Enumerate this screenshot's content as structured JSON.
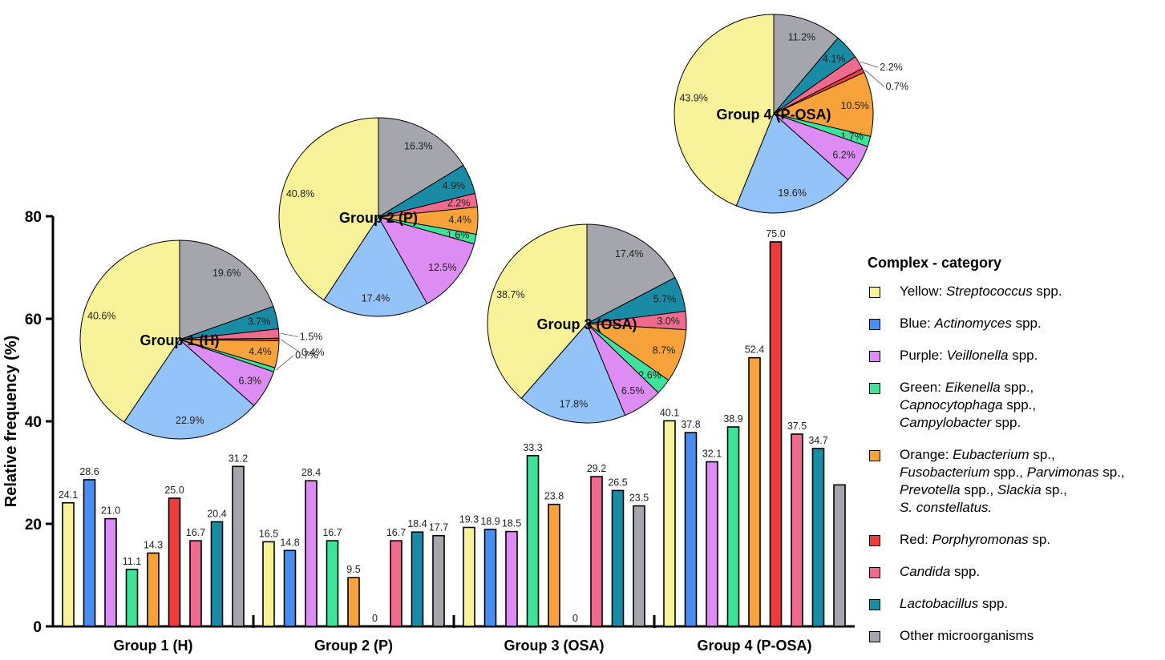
{
  "colors": {
    "yellow": "#f8f39b",
    "blue": "#4a8df0",
    "purple": "#dc8cf2",
    "green": "#3ee39a",
    "orange": "#f8a23b",
    "red": "#ee3b3b",
    "pink": "#ef6a8c",
    "teal": "#1a8ba5",
    "gray": "#a5a5ad",
    "light_blue": "#94c3f9"
  },
  "chart_data": [
    {
      "type": "bar",
      "ylabel": "Relative frequency (%)",
      "xlabel": "",
      "ylim": [
        0,
        80
      ],
      "yticks": [
        "0",
        "20",
        "40",
        "60",
        "80"
      ],
      "categories": [
        "Group 1 (H)",
        "Group 2 (P)",
        "Group 3 (OSA)",
        "Group 4 (P-OSA)"
      ],
      "series": [
        {
          "name": "Yellow",
          "color_key": "yellow",
          "values": [
            24.1,
            16.5,
            19.3,
            40.1
          ],
          "labels": [
            "24.1",
            "16.5",
            "19.3",
            "40.1"
          ]
        },
        {
          "name": "Blue",
          "color_key": "blue",
          "values": [
            28.6,
            14.8,
            18.9,
            37.8
          ],
          "labels": [
            "28.6",
            "14.8",
            "18.9",
            "37.8"
          ]
        },
        {
          "name": "Purple",
          "color_key": "purple",
          "values": [
            21.0,
            28.4,
            18.5,
            32.1
          ],
          "labels": [
            "21.0",
            "28.4",
            "18.5",
            "32.1"
          ]
        },
        {
          "name": "Green",
          "color_key": "green",
          "values": [
            11.1,
            16.7,
            33.3,
            38.9
          ],
          "labels": [
            "11.1",
            "16.7",
            "33.3",
            "38.9"
          ]
        },
        {
          "name": "Orange",
          "color_key": "orange",
          "values": [
            14.3,
            9.5,
            23.8,
            52.4
          ],
          "labels": [
            "14.3",
            "9.5",
            "23.8",
            "52.4"
          ]
        },
        {
          "name": "Red",
          "color_key": "red",
          "values": [
            25.0,
            0,
            0,
            75.0
          ],
          "labels": [
            "25.0",
            "0",
            "0",
            "75.0"
          ]
        },
        {
          "name": "Candida",
          "color_key": "pink",
          "values": [
            16.7,
            16.7,
            29.2,
            37.5
          ],
          "labels": [
            "16.7",
            "16.7",
            "29.2",
            "37.5"
          ]
        },
        {
          "name": "Lactobacillus",
          "color_key": "teal",
          "values": [
            20.4,
            18.4,
            26.5,
            34.7
          ],
          "labels": [
            "20.4",
            "18.4",
            "26.5",
            "34.7"
          ]
        },
        {
          "name": "Other",
          "color_key": "gray",
          "values": [
            31.2,
            17.7,
            23.5,
            27.6
          ],
          "labels": [
            "31.2",
            "17.7",
            "23.5",
            ""
          ]
        }
      ]
    },
    {
      "type": "pie",
      "title": "Group 1 (H)",
      "slices": [
        {
          "name": "Other",
          "color_key": "gray",
          "value": 19.6,
          "label": "19.6%"
        },
        {
          "name": "Lactobacillus",
          "color_key": "teal",
          "value": 3.7,
          "label": "3.7%"
        },
        {
          "name": "Candida",
          "color_key": "pink",
          "value": 1.5,
          "label": "1.5%"
        },
        {
          "name": "Red",
          "color_key": "red",
          "value": 0.4,
          "label": "0.4%"
        },
        {
          "name": "Orange",
          "color_key": "orange",
          "value": 4.4,
          "label": "4.4%"
        },
        {
          "name": "Green",
          "color_key": "green",
          "value": 0.7,
          "label": "0.7%"
        },
        {
          "name": "Purple",
          "color_key": "purple",
          "value": 6.3,
          "label": "6.3%"
        },
        {
          "name": "Blue",
          "color_key": "light_blue",
          "value": 22.9,
          "label": "22.9%"
        },
        {
          "name": "Yellow",
          "color_key": "yellow",
          "value": 40.6,
          "label": "40.6%"
        }
      ]
    },
    {
      "type": "pie",
      "title": "Group 2 (P)",
      "slices": [
        {
          "name": "Other",
          "color_key": "gray",
          "value": 16.3,
          "label": "16.3%"
        },
        {
          "name": "Lactobacillus",
          "color_key": "teal",
          "value": 4.9,
          "label": "4.9%"
        },
        {
          "name": "Candida",
          "color_key": "pink",
          "value": 2.2,
          "label": "2.2%"
        },
        {
          "name": "Orange",
          "color_key": "orange",
          "value": 4.4,
          "label": "4.4%"
        },
        {
          "name": "Green",
          "color_key": "green",
          "value": 1.6,
          "label": "1.6%"
        },
        {
          "name": "Purple",
          "color_key": "purple",
          "value": 12.5,
          "label": "12.5%"
        },
        {
          "name": "Blue",
          "color_key": "light_blue",
          "value": 17.4,
          "label": "17.4%"
        },
        {
          "name": "Yellow",
          "color_key": "yellow",
          "value": 40.8,
          "label": "40.8%"
        }
      ]
    },
    {
      "type": "pie",
      "title": "Group 3 (OSA)",
      "slices": [
        {
          "name": "Other",
          "color_key": "gray",
          "value": 17.4,
          "label": "17.4%"
        },
        {
          "name": "Lactobacillus",
          "color_key": "teal",
          "value": 5.7,
          "label": "5.7%"
        },
        {
          "name": "Candida",
          "color_key": "pink",
          "value": 3.0,
          "label": "3.0%"
        },
        {
          "name": "Orange",
          "color_key": "orange",
          "value": 8.7,
          "label": "8.7%"
        },
        {
          "name": "Green",
          "color_key": "green",
          "value": 2.6,
          "label": "2.6%"
        },
        {
          "name": "Purple",
          "color_key": "purple",
          "value": 6.5,
          "label": "6.5%"
        },
        {
          "name": "Blue",
          "color_key": "light_blue",
          "value": 17.8,
          "label": "17.8%"
        },
        {
          "name": "Yellow",
          "color_key": "yellow",
          "value": 38.7,
          "label": "38.7%"
        }
      ]
    },
    {
      "type": "pie",
      "title": "Group 4 (P-OSA)",
      "slices": [
        {
          "name": "Other",
          "color_key": "gray",
          "value": 11.2,
          "label": "11.2%"
        },
        {
          "name": "Lactobacillus",
          "color_key": "teal",
          "value": 4.1,
          "label": "4.1%"
        },
        {
          "name": "Candida",
          "color_key": "pink",
          "value": 2.2,
          "label": "2.2%"
        },
        {
          "name": "Red",
          "color_key": "red",
          "value": 0.7,
          "label": "0.7%"
        },
        {
          "name": "Orange",
          "color_key": "orange",
          "value": 10.5,
          "label": "10.5%"
        },
        {
          "name": "Green",
          "color_key": "green",
          "value": 1.7,
          "label": "1.7%"
        },
        {
          "name": "Purple",
          "color_key": "purple",
          "value": 6.2,
          "label": "6.2%"
        },
        {
          "name": "Blue",
          "color_key": "light_blue",
          "value": 19.6,
          "label": "19.6%"
        },
        {
          "name": "Yellow",
          "color_key": "yellow",
          "value": 43.9,
          "label": "43.9%"
        }
      ]
    }
  ],
  "legend": {
    "title": "Complex - category",
    "items": [
      {
        "color_key": "yellow",
        "lines": [
          [
            {
              "t": "Yellow: "
            },
            {
              "t": "Streptococcus",
              "i": true
            },
            {
              "t": " spp."
            }
          ]
        ]
      },
      {
        "color_key": "blue",
        "lines": [
          [
            {
              "t": "Blue: "
            },
            {
              "t": "Actinomyces",
              "i": true
            },
            {
              "t": " spp."
            }
          ]
        ]
      },
      {
        "color_key": "purple",
        "lines": [
          [
            {
              "t": "Purple: "
            },
            {
              "t": "Veillonella",
              "i": true
            },
            {
              "t": " spp."
            }
          ]
        ]
      },
      {
        "color_key": "green",
        "lines": [
          [
            {
              "t": "Green: "
            },
            {
              "t": "Eikenella",
              "i": true
            },
            {
              "t": " spp.,"
            }
          ],
          [
            {
              "t": "Capnocytophaga",
              "i": true
            },
            {
              "t": " spp.,"
            }
          ],
          [
            {
              "t": "Campylobacter",
              "i": true
            },
            {
              "t": " spp."
            }
          ]
        ]
      },
      {
        "color_key": "orange",
        "lines": [
          [
            {
              "t": "Orange: "
            },
            {
              "t": "Eubacterium",
              "i": true
            },
            {
              "t": " sp.,"
            }
          ],
          [
            {
              "t": "Fusobacterium",
              "i": true
            },
            {
              "t": " spp., "
            },
            {
              "t": "Parvimonas",
              "i": true
            },
            {
              "t": " sp.,"
            }
          ],
          [
            {
              "t": "Prevotella",
              "i": true
            },
            {
              "t": " spp., "
            },
            {
              "t": "Slackia",
              "i": true
            },
            {
              "t": " sp.,"
            }
          ],
          [
            {
              "t": "S. constellatus.",
              "i": true
            }
          ]
        ]
      },
      {
        "color_key": "red",
        "lines": [
          [
            {
              "t": "Red: "
            },
            {
              "t": "Porphyromonas",
              "i": true
            },
            {
              "t": " sp."
            }
          ]
        ]
      },
      {
        "color_key": "pink",
        "lines": [
          [
            {
              "t": "Candida",
              "i": true
            },
            {
              "t": " spp."
            }
          ]
        ]
      },
      {
        "color_key": "teal",
        "lines": [
          [
            {
              "t": "Lactobacillus",
              "i": true
            },
            {
              "t": " spp."
            }
          ]
        ]
      },
      {
        "color_key": "gray",
        "lines": [
          [
            {
              "t": "Other microorganisms"
            }
          ]
        ]
      }
    ]
  }
}
